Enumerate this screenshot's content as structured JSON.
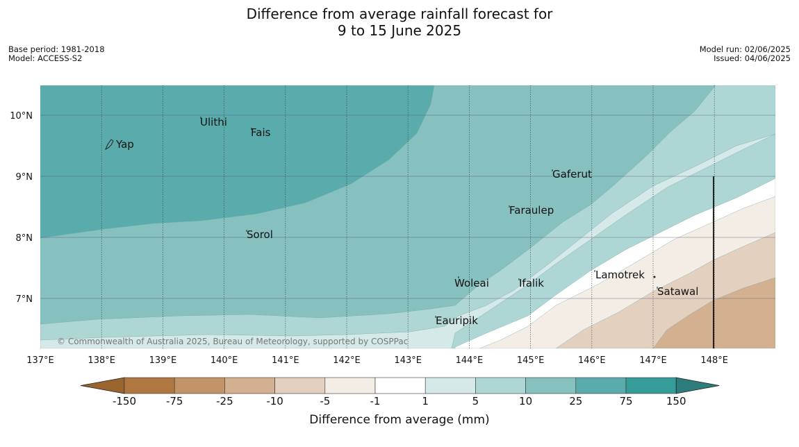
{
  "header": {
    "title_line1": "Difference from average rainfall forecast for",
    "title_line2": "9 to 15 June 2025",
    "base_period": "Base period: 1981-2018",
    "model": "Model: ACCESS-S2",
    "model_run": "Model run: 02/06/2025",
    "issued": "Issued: 04/06/2025"
  },
  "map": {
    "lat_labels": [
      "10°N",
      "9°N",
      "8°N",
      "7°N"
    ],
    "lon_labels": [
      "137°E",
      "138°E",
      "139°E",
      "140°E",
      "141°E",
      "142°E",
      "143°E",
      "144°E",
      "145°E",
      "146°E",
      "147°E",
      "148°E"
    ],
    "places": [
      "Yap",
      "Ulithi",
      "Fais",
      "Gaferut",
      "Faraulep",
      "Sorol",
      "Woleai",
      "Ifalik",
      "Lamotrek",
      "Satawal",
      "Eauripik"
    ],
    "copyright": "© Commonwealth of Australia 2025, Bureau of Meteorology, supported by COSPPac",
    "colors": {
      "very_wet": "#5aabab",
      "wet": "#86c0bf",
      "moderately_wet": "#aed6d5",
      "slightly_wet": "#d5e9e8",
      "neutral": "#ffffff",
      "slightly_dry": "#f3ede6",
      "moderately_dry": "#e4d0be",
      "dry": "#d3b190"
    }
  },
  "colorbar": {
    "ticks": [
      "-150",
      "-75",
      "-25",
      "-10",
      "-5",
      "-1",
      "1",
      "5",
      "10",
      "25",
      "75",
      "150"
    ],
    "colors": [
      "#b07840",
      "#c29468",
      "#d3b190",
      "#e4d0be",
      "#f3ede6",
      "#ffffff",
      "#d5e9e8",
      "#aed6d5",
      "#86c0bf",
      "#5aabab",
      "#369c99"
    ],
    "under_color": "#9a642e",
    "over_color": "#2e7d7d",
    "label": "Difference from average (mm)"
  }
}
